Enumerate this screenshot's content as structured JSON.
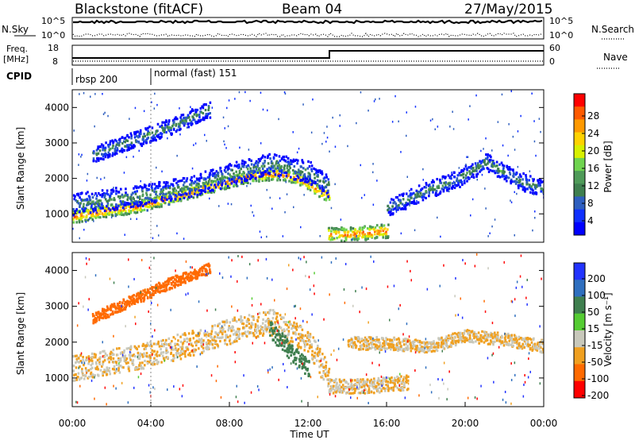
{
  "header": {
    "station": "Blackstone (fitACF)",
    "beam": "Beam 04",
    "date": "27/May/2015"
  },
  "top_panels": {
    "nsky_label": "N.Sky",
    "nsky_tick_hi": "10^5",
    "nsky_tick_lo": "10^0",
    "nsearch_label": "N.Search",
    "nsearch_tick_hi": "10^5",
    "nsearch_tick_lo": "10^0",
    "freq_label_1": "Freq.",
    "freq_label_2": "[MHz]",
    "freq_ticks": [
      "18",
      "8"
    ],
    "nave_label": "Nave",
    "nave_ticks": [
      "60",
      "0"
    ],
    "cpid_label": "CPID",
    "cpid_segments": [
      "rbsp 200",
      "normal (fast) 151"
    ]
  },
  "power_colorbar": {
    "label": "Power [dB]",
    "ticks": [
      "28",
      "24",
      "20",
      "16",
      "12",
      "8",
      "4"
    ],
    "colors": [
      "#ff0000",
      "#ff5a00",
      "#ff9900",
      "#ffd200",
      "#d7f000",
      "#6fd44f",
      "#4f9b59",
      "#3f7f4f",
      "#2f5fbf",
      "#1030ff",
      "#0000ff"
    ]
  },
  "velocity_colorbar": {
    "label": "Velocity [m s⁻¹]",
    "ticks": [
      "200",
      "100",
      "50",
      "15",
      "-15",
      "-50",
      "-100",
      "-200"
    ],
    "colors": [
      "#2233ff",
      "#2f6fbf",
      "#3f7f4f",
      "#55cc33",
      "#c8c8bb",
      "#f0a020",
      "#ff6a00",
      "#ff0000"
    ]
  },
  "chart_data": [
    {
      "type": "heatmap",
      "name": "power",
      "ylabel": "Slant Range [km]",
      "yticks": [
        1000,
        2000,
        3000,
        4000
      ],
      "ylim": [
        200,
        4500
      ],
      "xlim_hours": [
        0,
        24
      ],
      "bands": [
        {
          "t": [
            0,
            1,
            2,
            3,
            4,
            5,
            6,
            7,
            8,
            9,
            10,
            10.5,
            11,
            11.5,
            12,
            12.5,
            13
          ],
          "range": [
            950,
            1050,
            1150,
            1200,
            1350,
            1500,
            1650,
            1800,
            1950,
            2100,
            2150,
            2150,
            2100,
            2000,
            1850,
            1650,
            1550
          ],
          "width": 220,
          "level": 28
        },
        {
          "t": [
            0,
            2,
            4,
            6,
            8,
            10,
            12,
            13
          ],
          "range": [
            1300,
            1450,
            1600,
            1800,
            2150,
            2450,
            2200,
            1800
          ],
          "width": 380,
          "level": 12
        },
        {
          "t": [
            1,
            3,
            5,
            7
          ],
          "range": [
            2700,
            3100,
            3500,
            4000
          ],
          "width": 280,
          "level": 12
        },
        {
          "t": [
            13,
            14,
            15,
            16
          ],
          "range": [
            450,
            450,
            500,
            550
          ],
          "width": 250,
          "level": 28
        },
        {
          "t": [
            16,
            18,
            19.5,
            21,
            22.5,
            24
          ],
          "range": [
            1200,
            1700,
            2000,
            2500,
            2000,
            1700
          ],
          "width": 300,
          "level": 12
        }
      ]
    },
    {
      "type": "heatmap",
      "name": "velocity",
      "ylabel": "Slant Range [km]",
      "yticks": [
        1000,
        2000,
        3000,
        4000
      ],
      "ylim": [
        200,
        4500
      ],
      "xlabel": "Time UT",
      "xticks": [
        "00:00",
        "04:00",
        "08:00",
        "12:00",
        "16:00",
        "20:00",
        "00:00"
      ],
      "bands": [
        {
          "t": [
            0,
            2,
            4,
            6,
            8,
            10,
            12,
            13
          ],
          "range": [
            1300,
            1500,
            1700,
            2000,
            2350,
            2600,
            2000,
            1000
          ],
          "width": 700,
          "vel": -15
        },
        {
          "t": [
            1,
            3,
            5,
            7
          ],
          "range": [
            2700,
            3200,
            3700,
            4100
          ],
          "width": 300,
          "vel": -50
        },
        {
          "t": [
            10,
            11,
            12
          ],
          "range": [
            2400,
            1800,
            1300
          ],
          "width": 500,
          "vel": 50
        },
        {
          "t": [
            13,
            15,
            17
          ],
          "range": [
            800,
            800,
            900
          ],
          "width": 400,
          "vel": -15
        },
        {
          "t": [
            14,
            16,
            18,
            20,
            22,
            24
          ],
          "range": [
            2000,
            2000,
            1900,
            2200,
            2100,
            1900
          ],
          "width": 350,
          "vel": -15
        }
      ]
    }
  ]
}
